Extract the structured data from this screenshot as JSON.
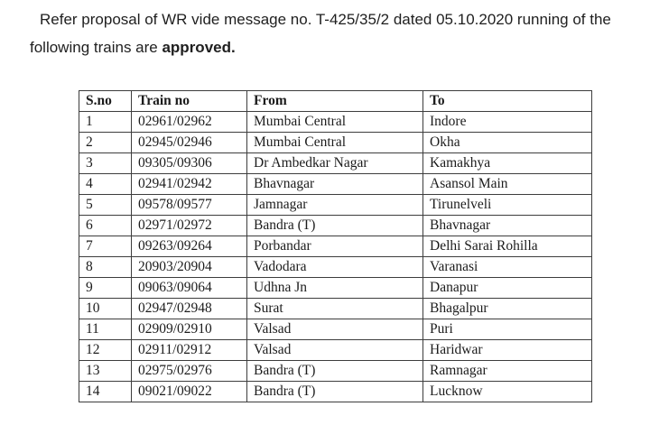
{
  "paragraph": {
    "text_before_bold": "Refer proposal of WR vide message no. T-425/35/2 dated 05.10.2020 running of the following trains are ",
    "bold_text": "approved."
  },
  "table": {
    "headers": [
      "S.no",
      "Train no",
      "From",
      "To"
    ],
    "rows": [
      [
        "1",
        "02961/02962",
        "Mumbai Central",
        "Indore"
      ],
      [
        "2",
        "02945/02946",
        "Mumbai Central",
        "Okha"
      ],
      [
        "3",
        "09305/09306",
        "Dr Ambedkar Nagar",
        "Kamakhya"
      ],
      [
        "4",
        "02941/02942",
        "Bhavnagar",
        "Asansol Main"
      ],
      [
        "5",
        "09578/09577",
        "Jamnagar",
        "Tirunelveli"
      ],
      [
        "6",
        "02971/02972",
        "Bandra (T)",
        "Bhavnagar"
      ],
      [
        "7",
        "09263/09264",
        "Porbandar",
        "Delhi Sarai Rohilla"
      ],
      [
        "8",
        "20903/20904",
        "Vadodara",
        "Varanasi"
      ],
      [
        "9",
        "09063/09064",
        "Udhna Jn",
        "Danapur"
      ],
      [
        "10",
        "02947/02948",
        "Surat",
        "Bhagalpur"
      ],
      [
        "11",
        "02909/02910",
        "Valsad",
        "Puri"
      ],
      [
        "12",
        "02911/02912",
        "Valsad",
        "Haridwar"
      ],
      [
        "13",
        "02975/02976",
        "Bandra (T)",
        "Ramnagar"
      ],
      [
        "14",
        "09021/09022",
        "Bandra (T)",
        "Lucknow"
      ]
    ]
  },
  "colors": {
    "text": "#1f1f1f",
    "table_border": "#3d3d3d",
    "background": "#ffffff"
  }
}
